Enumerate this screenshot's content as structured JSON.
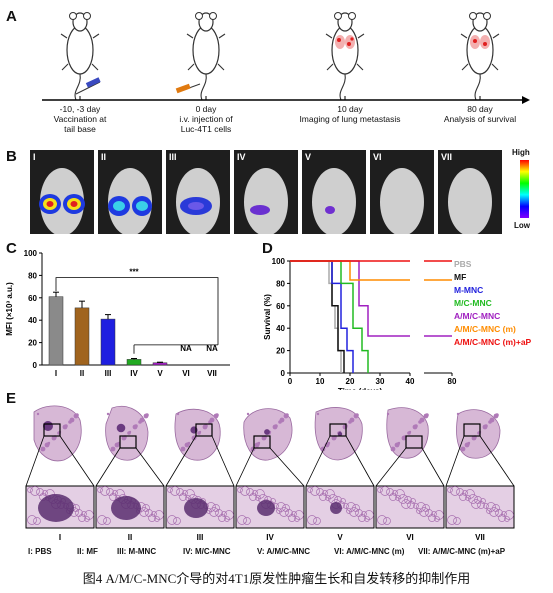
{
  "panels": {
    "a": "A",
    "b": "B",
    "c": "C",
    "d": "D",
    "e": "E"
  },
  "timeline": [
    {
      "day": "-10, -3 day",
      "desc1": "Vaccination at",
      "desc2": "tail base"
    },
    {
      "day": "0 day",
      "desc1": "i.v. injection of",
      "desc2": "Luc-4T1 cells"
    },
    {
      "day": "10 day",
      "desc1": "Imaging of lung metastasis",
      "desc2": ""
    },
    {
      "day": "80 day",
      "desc1": "Analysis of survival",
      "desc2": ""
    }
  ],
  "imaging": {
    "groups": [
      "I",
      "II",
      "III",
      "IV",
      "V",
      "VI",
      "VII"
    ],
    "scale_high": "High",
    "scale_low": "Low"
  },
  "chart_data": [
    {
      "type": "bar",
      "panel": "C",
      "ylabel": "MFI (×10³ a.u.)",
      "categories": [
        "I",
        "II",
        "III",
        "IV",
        "V",
        "VI",
        "VII"
      ],
      "values": [
        61,
        51,
        41,
        5,
        2,
        null,
        null
      ],
      "errors": [
        4,
        6,
        4,
        0.8,
        0.5,
        null,
        null
      ],
      "colors": [
        "#8a8a8a",
        "#a0641e",
        "#1f1fe0",
        "#22aa22",
        "#a020c0",
        "#ffffff",
        "#ffffff"
      ],
      "ylim": [
        0,
        100
      ],
      "yticks": [
        "0",
        "20",
        "40",
        "60",
        "80",
        "100"
      ],
      "na_labels": [
        "NA",
        "NA"
      ],
      "significance": "***"
    },
    {
      "type": "line",
      "panel": "D",
      "ylabel": "Survival (%)",
      "xlabel": "Time (days)",
      "xticks": [
        "0",
        "10",
        "20",
        "30",
        "40",
        "80"
      ],
      "yticks": [
        "0",
        "20",
        "40",
        "60",
        "80",
        "100"
      ],
      "series": [
        {
          "name": "PBS",
          "color": "#aaaaaa",
          "steps": [
            [
              0,
              100
            ],
            [
              13,
              100
            ],
            [
              13,
              80
            ],
            [
              14,
              80
            ],
            [
              14,
              60
            ],
            [
              15,
              60
            ],
            [
              15,
              40
            ],
            [
              16,
              40
            ],
            [
              16,
              20
            ],
            [
              17,
              20
            ],
            [
              17,
              0
            ]
          ]
        },
        {
          "name": "MF",
          "color": "#111111",
          "steps": [
            [
              0,
              100
            ],
            [
              14,
              100
            ],
            [
              14,
              60
            ],
            [
              16,
              60
            ],
            [
              16,
              20
            ],
            [
              18,
              20
            ],
            [
              18,
              0
            ]
          ]
        },
        {
          "name": "M-MNC",
          "color": "#2222dd",
          "steps": [
            [
              0,
              100
            ],
            [
              14,
              100
            ],
            [
              14,
              80
            ],
            [
              17,
              80
            ],
            [
              17,
              40
            ],
            [
              19,
              40
            ],
            [
              19,
              20
            ],
            [
              21,
              20
            ],
            [
              21,
              0
            ]
          ]
        },
        {
          "name": "M/C-MNC",
          "color": "#22bb22",
          "steps": [
            [
              0,
              100
            ],
            [
              17,
              100
            ],
            [
              17,
              80
            ],
            [
              21,
              80
            ],
            [
              21,
              40
            ],
            [
              24,
              40
            ],
            [
              24,
              20
            ],
            [
              26,
              20
            ],
            [
              26,
              0
            ]
          ]
        },
        {
          "name": "A/M/C-MNC",
          "color": "#a020c0",
          "steps": [
            [
              0,
              100
            ],
            [
              23,
              100
            ],
            [
              23,
              60
            ],
            [
              26,
              60
            ],
            [
              26,
              33
            ],
            [
              40,
              33
            ],
            [
              45,
              33
            ],
            [
              80,
              33
            ]
          ]
        },
        {
          "name": "A/M/C-MNC (m)",
          "color": "#ff8c00",
          "steps": [
            [
              0,
              100
            ],
            [
              20,
              100
            ],
            [
              20,
              83
            ],
            [
              40,
              83
            ],
            [
              45,
              83
            ],
            [
              80,
              83
            ]
          ]
        },
        {
          "name": "A/M/C-MNC (m)+aP",
          "color": "#ee1111",
          "steps": [
            [
              0,
              100
            ],
            [
              40,
              100
            ],
            [
              45,
              100
            ],
            [
              80,
              100
            ]
          ]
        }
      ]
    }
  ],
  "histology": {
    "labels": [
      "I",
      "II",
      "III",
      "IV",
      "V",
      "VI",
      "VII"
    ],
    "legend": [
      "I: PBS",
      "II: MF",
      "III: M-MNC",
      "IV: M/C-MNC",
      "V: A/M/C-MNC",
      "VI: A/M/C-MNC (m)",
      "VII: A/M/C-MNC (m)+aP"
    ]
  },
  "caption": "图4 A/M/C-MNC介导的对4T1原发性肿瘤生长和自发转移的抑制作用"
}
